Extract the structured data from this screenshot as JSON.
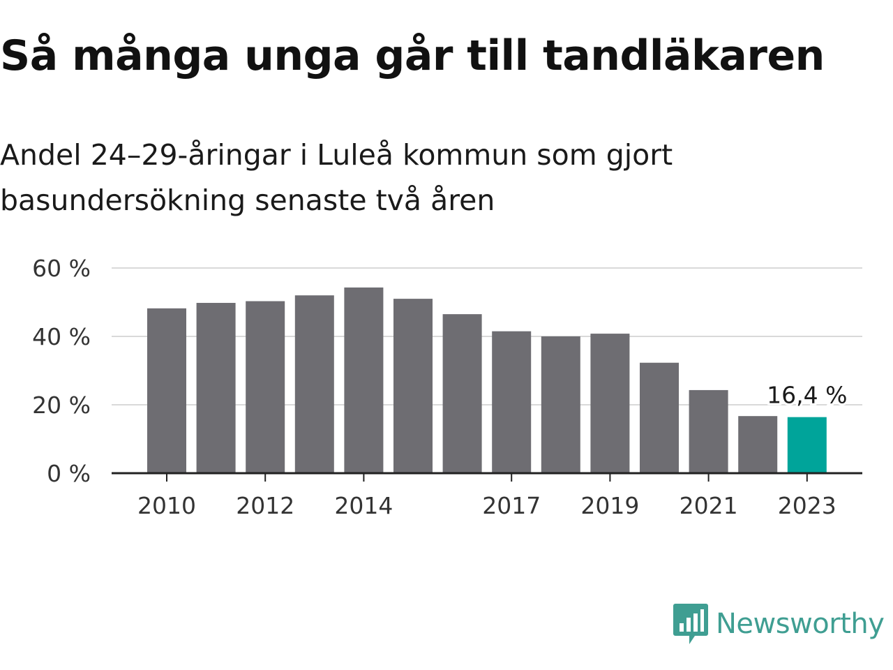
{
  "title": "Så många unga går till tandläkaren",
  "subtitle": "Andel 24–29-åringar i Luleå kommun som gjort basundersökning senaste två åren",
  "logo": {
    "text": "Newsworthy",
    "icon": "bar-chart-speech-bubble-icon",
    "color": "#3f9e92"
  },
  "chart_data": {
    "type": "bar",
    "categories": [
      "2010",
      "2011",
      "2012",
      "2013",
      "2014",
      "2015",
      "2016",
      "2017",
      "2018",
      "2019",
      "2020",
      "2021",
      "2022",
      "2023"
    ],
    "values": [
      48.2,
      49.8,
      50.3,
      52.0,
      54.3,
      51.0,
      46.5,
      41.5,
      40.0,
      40.8,
      32.3,
      24.3,
      16.7,
      16.4
    ],
    "x_tick_labels": [
      "2010",
      "2012",
      "2014",
      "2017",
      "2019",
      "2021",
      "2023"
    ],
    "y_ticks": [
      0,
      20,
      40,
      60
    ],
    "y_tick_labels": [
      "0 %",
      "20 %",
      "40 %",
      "60 %"
    ],
    "ylim": [
      0,
      60
    ],
    "grid": true,
    "bar_color": "#6e6d72",
    "highlight_color": "#00a49a",
    "highlight_category": "2023",
    "annotation": {
      "category": "2023",
      "text": "16,4 %"
    },
    "title": "",
    "xlabel": "",
    "ylabel": ""
  }
}
